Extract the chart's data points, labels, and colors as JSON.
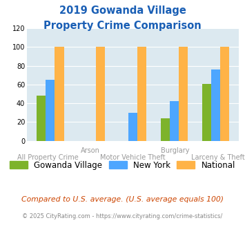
{
  "title_line1": "2019 Gowanda Village",
  "title_line2": "Property Crime Comparison",
  "categories": [
    "All Property Crime",
    "Arson",
    "Motor Vehicle Theft",
    "Burglary",
    "Larceny & Theft"
  ],
  "row1_labels": {
    "1": "Arson",
    "3": "Burglary"
  },
  "row2_labels": {
    "0": "All Property Crime",
    "2": "Motor Vehicle Theft",
    "4": "Larceny & Theft"
  },
  "series": {
    "Gowanda Village": [
      48,
      0,
      0,
      24,
      61
    ],
    "New York": [
      65,
      0,
      30,
      42,
      76
    ],
    "National": [
      100,
      100,
      100,
      100,
      100
    ]
  },
  "colors": {
    "Gowanda Village": "#7db32b",
    "New York": "#4da6ff",
    "National": "#ffb347"
  },
  "ylim": [
    0,
    120
  ],
  "yticks": [
    0,
    20,
    40,
    60,
    80,
    100,
    120
  ],
  "plot_bg": "#dce9f0",
  "title_color": "#1a5fb5",
  "label_color": "#999999",
  "legend_fontsize": 8.5,
  "footer_note": "Compared to U.S. average. (U.S. average equals 100)",
  "footer_credit": "© 2025 CityRating.com - https://www.cityrating.com/crime-statistics/",
  "footer_note_color": "#cc4400",
  "footer_credit_color": "#888888"
}
